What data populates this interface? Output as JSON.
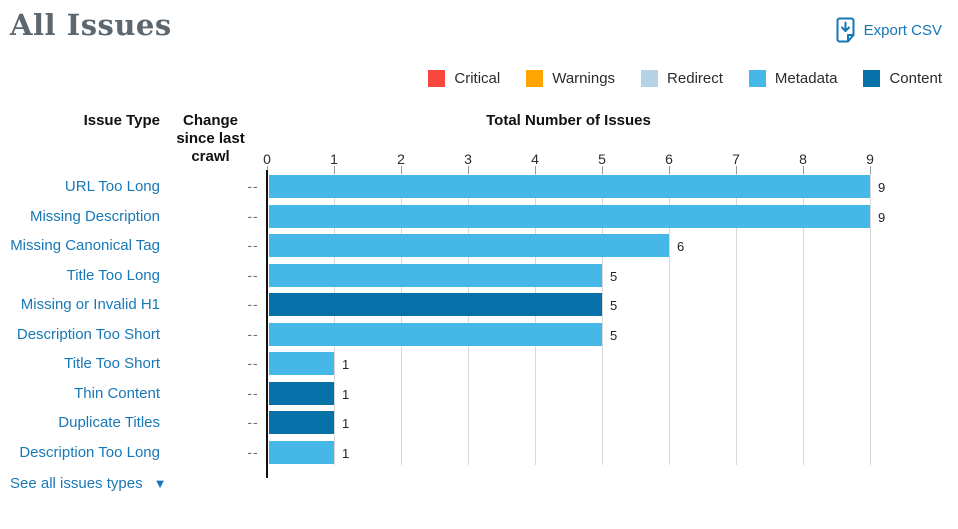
{
  "header": {
    "title": "All Issues",
    "export_label": "Export CSV"
  },
  "accent_color": "#1577b5",
  "link_color": "#1878b6",
  "legend": [
    {
      "label": "Critical",
      "color": "#f8473f"
    },
    {
      "label": "Warnings",
      "color": "#ffa400"
    },
    {
      "label": "Redirect",
      "color": "#b4d3e4"
    },
    {
      "label": "Metadata",
      "color": "#45b8e8"
    },
    {
      "label": "Content",
      "color": "#0670a8"
    }
  ],
  "columns": {
    "issue_type": "Issue Type",
    "change": "Change since last crawl",
    "total": "Total Number of Issues"
  },
  "chart_data": {
    "type": "bar",
    "orientation": "horizontal",
    "title": "Total Number of Issues",
    "xlabel": "",
    "ylabel": "Issue Type",
    "xlim": [
      0,
      9
    ],
    "x_ticks": [
      0,
      1,
      2,
      3,
      4,
      5,
      6,
      7,
      8,
      9
    ],
    "grid": true,
    "legend_position": "top-right",
    "categories": [
      "URL Too Long",
      "Missing Description",
      "Missing Canonical Tag",
      "Title Too Long",
      "Missing or Invalid H1",
      "Description Too Short",
      "Title Too Short",
      "Thin Content",
      "Duplicate Titles",
      "Description Too Long"
    ],
    "values": [
      9,
      9,
      6,
      5,
      5,
      5,
      1,
      1,
      1,
      1
    ],
    "bars": [
      {
        "label": "URL Too Long",
        "value": 9,
        "category": "Metadata",
        "change": "--"
      },
      {
        "label": "Missing Description",
        "value": 9,
        "category": "Metadata",
        "change": "--"
      },
      {
        "label": "Missing Canonical Tag",
        "value": 6,
        "category": "Metadata",
        "change": "--"
      },
      {
        "label": "Title Too Long",
        "value": 5,
        "category": "Metadata",
        "change": "--"
      },
      {
        "label": "Missing or Invalid H1",
        "value": 5,
        "category": "Content",
        "change": "--"
      },
      {
        "label": "Description Too Short",
        "value": 5,
        "category": "Metadata",
        "change": "--"
      },
      {
        "label": "Title Too Short",
        "value": 1,
        "category": "Metadata",
        "change": "--"
      },
      {
        "label": "Thin Content",
        "value": 1,
        "category": "Content",
        "change": "--"
      },
      {
        "label": "Duplicate Titles",
        "value": 1,
        "category": "Content",
        "change": "--"
      },
      {
        "label": "Description Too Long",
        "value": 1,
        "category": "Metadata",
        "change": "--"
      }
    ]
  },
  "footer": {
    "see_all_label": "See all issues types"
  }
}
